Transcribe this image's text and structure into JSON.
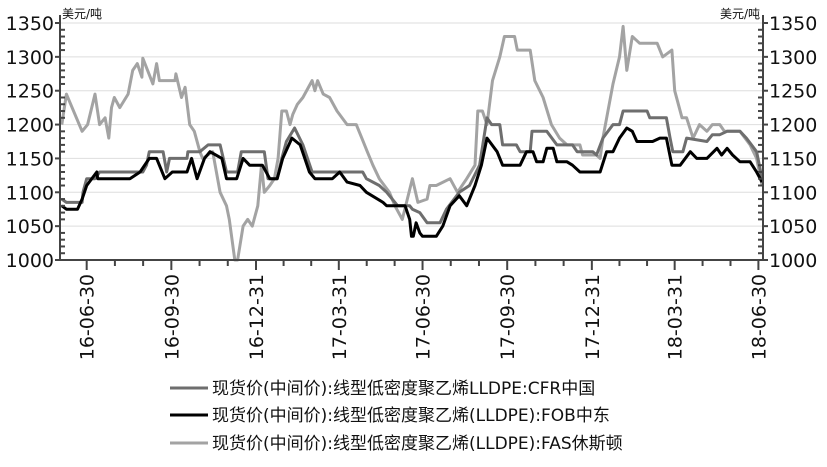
{
  "chart_data": {
    "type": "line",
    "title": "",
    "ylabel_left": "美元/吨",
    "ylabel_right": "美元/吨",
    "x_unit": "days since 2016-06-30",
    "xlim": [
      -29,
      735
    ],
    "ylim": [
      1000,
      1350
    ],
    "yticks": [
      1000,
      1050,
      1100,
      1150,
      1200,
      1250,
      1300,
      1350
    ],
    "xticks": [
      {
        "day": 0,
        "label": "16-06-30"
      },
      {
        "day": 92,
        "label": "16-09-30"
      },
      {
        "day": 184,
        "label": "16-12-31"
      },
      {
        "day": 274,
        "label": "17-03-31"
      },
      {
        "day": 365,
        "label": "17-06-30"
      },
      {
        "day": 457,
        "label": "17-09-30"
      },
      {
        "day": 549,
        "label": "17-12-31"
      },
      {
        "day": 639,
        "label": "18-03-31"
      },
      {
        "day": 730,
        "label": "18-06-30"
      }
    ],
    "grid": true,
    "legend_position": "bottom",
    "series": [
      {
        "name": "现货价(中间价):线型低密度聚乙烯LLDPE:CFR中国",
        "color": "#6e6e6e",
        "points": [
          [
            -27,
            1090
          ],
          [
            -22,
            1085
          ],
          [
            -5,
            1085
          ],
          [
            -4,
            1100
          ],
          [
            0,
            1120
          ],
          [
            9,
            1120
          ],
          [
            14,
            1130
          ],
          [
            61,
            1130
          ],
          [
            65,
            1140
          ],
          [
            68,
            1160
          ],
          [
            83,
            1160
          ],
          [
            87,
            1130
          ],
          [
            90,
            1150
          ],
          [
            109,
            1150
          ],
          [
            110,
            1160
          ],
          [
            123,
            1160
          ],
          [
            132,
            1170
          ],
          [
            145,
            1170
          ],
          [
            152,
            1130
          ],
          [
            164,
            1130
          ],
          [
            168,
            1160
          ],
          [
            193,
            1160
          ],
          [
            197,
            1120
          ],
          [
            207,
            1120
          ],
          [
            212,
            1150
          ],
          [
            217,
            1175
          ],
          [
            226,
            1195
          ],
          [
            235,
            1170
          ],
          [
            245,
            1130
          ],
          [
            300,
            1130
          ],
          [
            304,
            1120
          ],
          [
            318,
            1110
          ],
          [
            326,
            1100
          ],
          [
            338,
            1080
          ],
          [
            351,
            1080
          ],
          [
            354,
            1075
          ],
          [
            362,
            1070
          ],
          [
            370,
            1055
          ],
          [
            384,
            1055
          ],
          [
            391,
            1075
          ],
          [
            405,
            1100
          ],
          [
            416,
            1110
          ],
          [
            427,
            1140
          ],
          [
            435,
            1210
          ],
          [
            440,
            1200
          ],
          [
            449,
            1200
          ],
          [
            452,
            1170
          ],
          [
            467,
            1170
          ],
          [
            471,
            1160
          ],
          [
            482,
            1160
          ],
          [
            484,
            1190
          ],
          [
            500,
            1190
          ],
          [
            511,
            1170
          ],
          [
            528,
            1170
          ],
          [
            533,
            1160
          ],
          [
            550,
            1160
          ],
          [
            554,
            1155
          ],
          [
            561,
            1180
          ],
          [
            572,
            1200
          ],
          [
            579,
            1200
          ],
          [
            583,
            1220
          ],
          [
            609,
            1220
          ],
          [
            612,
            1210
          ],
          [
            630,
            1210
          ],
          [
            634,
            1180
          ],
          [
            637,
            1160
          ],
          [
            648,
            1160
          ],
          [
            652,
            1180
          ],
          [
            674,
            1175
          ],
          [
            680,
            1185
          ],
          [
            688,
            1185
          ],
          [
            696,
            1190
          ],
          [
            710,
            1190
          ],
          [
            717,
            1180
          ],
          [
            728,
            1160
          ],
          [
            734,
            1120
          ]
        ]
      },
      {
        "name": "现货价(中间价):线型低密度聚乙烯(LLDPE):FOB中东",
        "color": "#000000",
        "points": [
          [
            -27,
            1080
          ],
          [
            -22,
            1075
          ],
          [
            -10,
            1075
          ],
          [
            -5,
            1090
          ],
          [
            0,
            1110
          ],
          [
            11,
            1130
          ],
          [
            12,
            1120
          ],
          [
            47,
            1120
          ],
          [
            58,
            1130
          ],
          [
            68,
            1150
          ],
          [
            76,
            1150
          ],
          [
            85,
            1120
          ],
          [
            93,
            1130
          ],
          [
            109,
            1130
          ],
          [
            114,
            1150
          ],
          [
            120,
            1120
          ],
          [
            128,
            1150
          ],
          [
            134,
            1160
          ],
          [
            147,
            1150
          ],
          [
            152,
            1120
          ],
          [
            163,
            1120
          ],
          [
            170,
            1150
          ],
          [
            177,
            1140
          ],
          [
            191,
            1140
          ],
          [
            199,
            1120
          ],
          [
            207,
            1120
          ],
          [
            213,
            1150
          ],
          [
            223,
            1180
          ],
          [
            232,
            1170
          ],
          [
            242,
            1130
          ],
          [
            248,
            1120
          ],
          [
            267,
            1120
          ],
          [
            275,
            1130
          ],
          [
            283,
            1115
          ],
          [
            297,
            1110
          ],
          [
            304,
            1100
          ],
          [
            322,
            1085
          ],
          [
            326,
            1080
          ],
          [
            346,
            1080
          ],
          [
            351,
            1060
          ],
          [
            353,
            1035
          ],
          [
            355,
            1035
          ],
          [
            358,
            1055
          ],
          [
            362,
            1040
          ],
          [
            365,
            1035
          ],
          [
            380,
            1035
          ],
          [
            387,
            1050
          ],
          [
            395,
            1080
          ],
          [
            405,
            1095
          ],
          [
            413,
            1080
          ],
          [
            422,
            1110
          ],
          [
            429,
            1140
          ],
          [
            435,
            1180
          ],
          [
            446,
            1160
          ],
          [
            452,
            1140
          ],
          [
            471,
            1140
          ],
          [
            478,
            1160
          ],
          [
            485,
            1160
          ],
          [
            489,
            1145
          ],
          [
            496,
            1145
          ],
          [
            500,
            1165
          ],
          [
            507,
            1165
          ],
          [
            511,
            1145
          ],
          [
            522,
            1145
          ],
          [
            528,
            1140
          ],
          [
            536,
            1130
          ],
          [
            558,
            1130
          ],
          [
            565,
            1160
          ],
          [
            572,
            1160
          ],
          [
            579,
            1180
          ],
          [
            587,
            1195
          ],
          [
            593,
            1190
          ],
          [
            598,
            1175
          ],
          [
            615,
            1175
          ],
          [
            623,
            1180
          ],
          [
            630,
            1180
          ],
          [
            636,
            1140
          ],
          [
            645,
            1140
          ],
          [
            656,
            1160
          ],
          [
            663,
            1150
          ],
          [
            674,
            1150
          ],
          [
            685,
            1165
          ],
          [
            690,
            1155
          ],
          [
            696,
            1165
          ],
          [
            702,
            1155
          ],
          [
            710,
            1145
          ],
          [
            721,
            1145
          ],
          [
            728,
            1130
          ],
          [
            734,
            1115
          ]
        ]
      },
      {
        "name": "现货价(中间价):线型低密度聚乙烯(LLDPE):FAS休斯顿",
        "color": "#a3a3a3",
        "points": [
          [
            -27,
            1200
          ],
          [
            -22,
            1245
          ],
          [
            -5,
            1190
          ],
          [
            1,
            1200
          ],
          [
            9,
            1245
          ],
          [
            14,
            1200
          ],
          [
            20,
            1210
          ],
          [
            24,
            1180
          ],
          [
            27,
            1225
          ],
          [
            30,
            1240
          ],
          [
            36,
            1225
          ],
          [
            45,
            1245
          ],
          [
            50,
            1280
          ],
          [
            55,
            1290
          ],
          [
            60,
            1270
          ],
          [
            61,
            1298
          ],
          [
            72,
            1260
          ],
          [
            76,
            1290
          ],
          [
            79,
            1265
          ],
          [
            96,
            1265
          ],
          [
            97,
            1275
          ],
          [
            103,
            1240
          ],
          [
            107,
            1255
          ],
          [
            112,
            1200
          ],
          [
            117,
            1190
          ],
          [
            123,
            1160
          ],
          [
            126,
            1150
          ],
          [
            137,
            1160
          ],
          [
            145,
            1100
          ],
          [
            152,
            1080
          ],
          [
            155,
            1060
          ],
          [
            161,
            1000
          ],
          [
            164,
            1000
          ],
          [
            170,
            1050
          ],
          [
            175,
            1060
          ],
          [
            180,
            1050
          ],
          [
            186,
            1080
          ],
          [
            190,
            1140
          ],
          [
            193,
            1100
          ],
          [
            199,
            1110
          ],
          [
            204,
            1120
          ],
          [
            208,
            1150
          ],
          [
            212,
            1220
          ],
          [
            217,
            1220
          ],
          [
            221,
            1200
          ],
          [
            224,
            1215
          ],
          [
            229,
            1230
          ],
          [
            235,
            1240
          ],
          [
            245,
            1265
          ],
          [
            248,
            1250
          ],
          [
            251,
            1265
          ],
          [
            257,
            1245
          ],
          [
            264,
            1240
          ],
          [
            272,
            1220
          ],
          [
            283,
            1200
          ],
          [
            293,
            1200
          ],
          [
            299,
            1180
          ],
          [
            305,
            1160
          ],
          [
            311,
            1140
          ],
          [
            318,
            1120
          ],
          [
            329,
            1100
          ],
          [
            335,
            1080
          ],
          [
            343,
            1060
          ],
          [
            354,
            1120
          ],
          [
            360,
            1085
          ],
          [
            370,
            1090
          ],
          [
            373,
            1110
          ],
          [
            380,
            1110
          ],
          [
            395,
            1120
          ],
          [
            403,
            1100
          ],
          [
            413,
            1120
          ],
          [
            422,
            1140
          ],
          [
            425,
            1220
          ],
          [
            430,
            1220
          ],
          [
            435,
            1200
          ],
          [
            441,
            1265
          ],
          [
            449,
            1300
          ],
          [
            454,
            1330
          ],
          [
            465,
            1330
          ],
          [
            468,
            1310
          ],
          [
            482,
            1310
          ],
          [
            487,
            1265
          ],
          [
            496,
            1240
          ],
          [
            505,
            1200
          ],
          [
            514,
            1180
          ],
          [
            522,
            1170
          ],
          [
            536,
            1170
          ],
          [
            539,
            1155
          ],
          [
            554,
            1155
          ],
          [
            558,
            1150
          ],
          [
            561,
            1180
          ],
          [
            572,
            1260
          ],
          [
            579,
            1300
          ],
          [
            583,
            1345
          ],
          [
            587,
            1280
          ],
          [
            593,
            1330
          ],
          [
            601,
            1320
          ],
          [
            620,
            1320
          ],
          [
            626,
            1300
          ],
          [
            636,
            1310
          ],
          [
            639,
            1250
          ],
          [
            647,
            1210
          ],
          [
            652,
            1210
          ],
          [
            659,
            1180
          ],
          [
            666,
            1200
          ],
          [
            674,
            1190
          ],
          [
            680,
            1200
          ],
          [
            688,
            1200
          ],
          [
            693,
            1190
          ],
          [
            710,
            1190
          ],
          [
            721,
            1170
          ],
          [
            728,
            1150
          ],
          [
            734,
            1110
          ]
        ]
      }
    ]
  }
}
